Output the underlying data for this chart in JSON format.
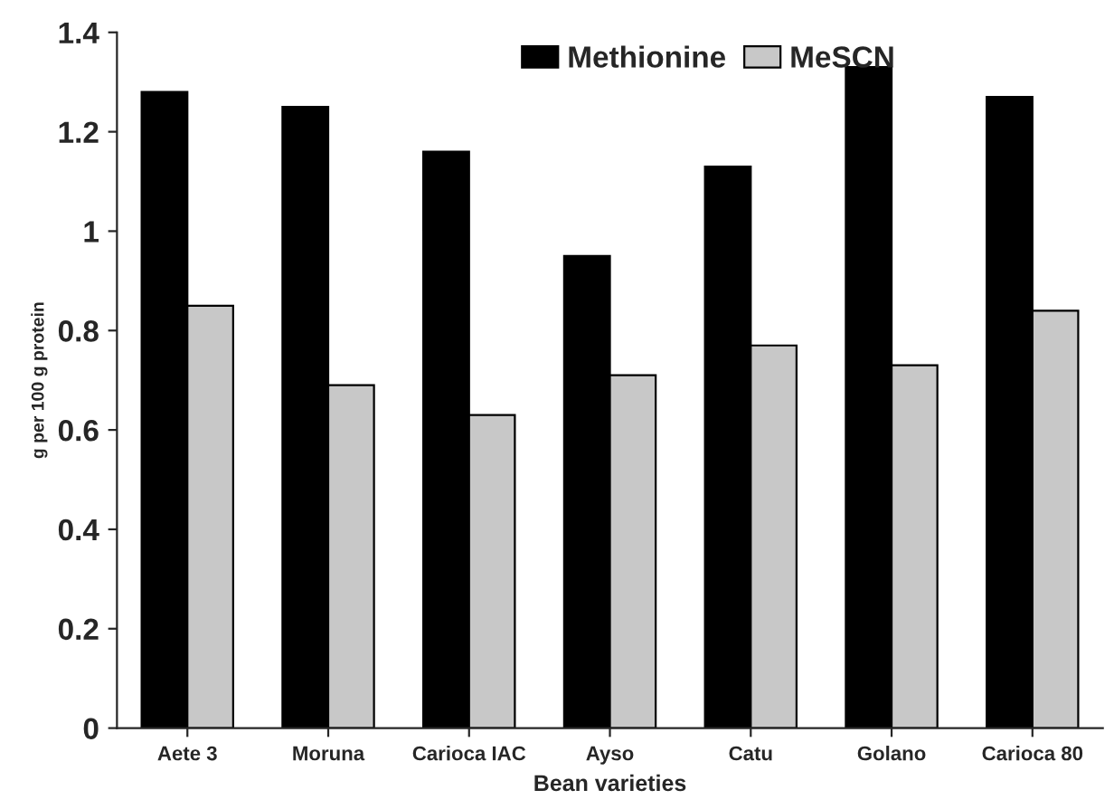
{
  "chart_data": {
    "type": "bar",
    "xlabel": "Bean varieties",
    "ylabel": "g per 100 g protein",
    "categories": [
      "Aete 3",
      "Moruna",
      "Carioca IAC",
      "Ayso",
      "Catu",
      "Golano",
      "Carioca 80"
    ],
    "series": [
      {
        "name": "Methionine",
        "color": "#000000",
        "values": [
          1.28,
          1.25,
          1.16,
          0.95,
          1.13,
          1.33,
          1.27
        ]
      },
      {
        "name": "MeSCN",
        "color": "#c8c8c8",
        "values": [
          0.85,
          0.69,
          0.63,
          0.71,
          0.77,
          0.73,
          0.84
        ]
      }
    ],
    "ylim": [
      0,
      1.4
    ],
    "yticks": [
      0,
      0.2,
      0.4,
      0.6,
      0.8,
      1,
      1.2,
      1.4
    ],
    "grid": false,
    "legend": "top"
  }
}
